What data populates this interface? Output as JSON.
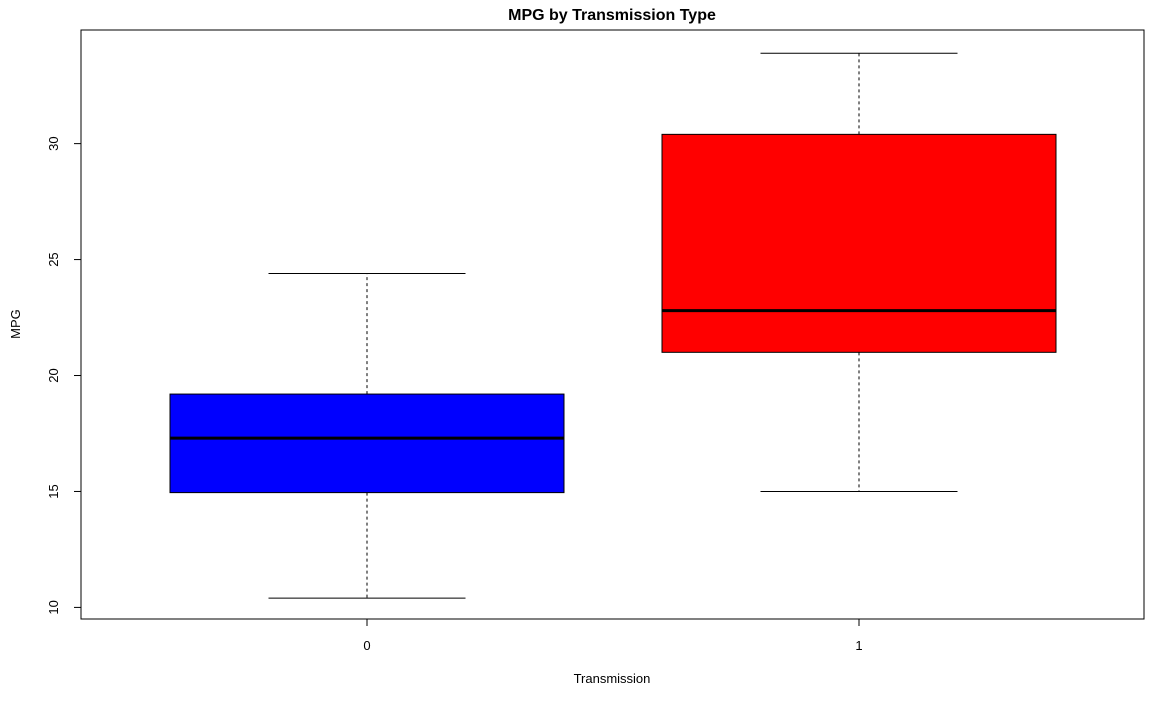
{
  "chart_data": {
    "type": "box",
    "title": "MPG by Transmission Type",
    "xlabel": "Transmission",
    "ylabel": "MPG",
    "ylim": [
      9.5,
      34.9
    ],
    "yticks": [
      "10",
      "15",
      "20",
      "25",
      "30"
    ],
    "categories": [
      "0",
      "1"
    ],
    "boxes": [
      {
        "category": "0",
        "min": 10.4,
        "q1": 14.95,
        "median": 17.3,
        "q3": 19.2,
        "max": 24.4,
        "color": "#0000ff"
      },
      {
        "category": "1",
        "min": 15.0,
        "q1": 21.0,
        "median": 22.8,
        "q3": 30.4,
        "max": 33.9,
        "color": "#ff0000"
      }
    ]
  }
}
